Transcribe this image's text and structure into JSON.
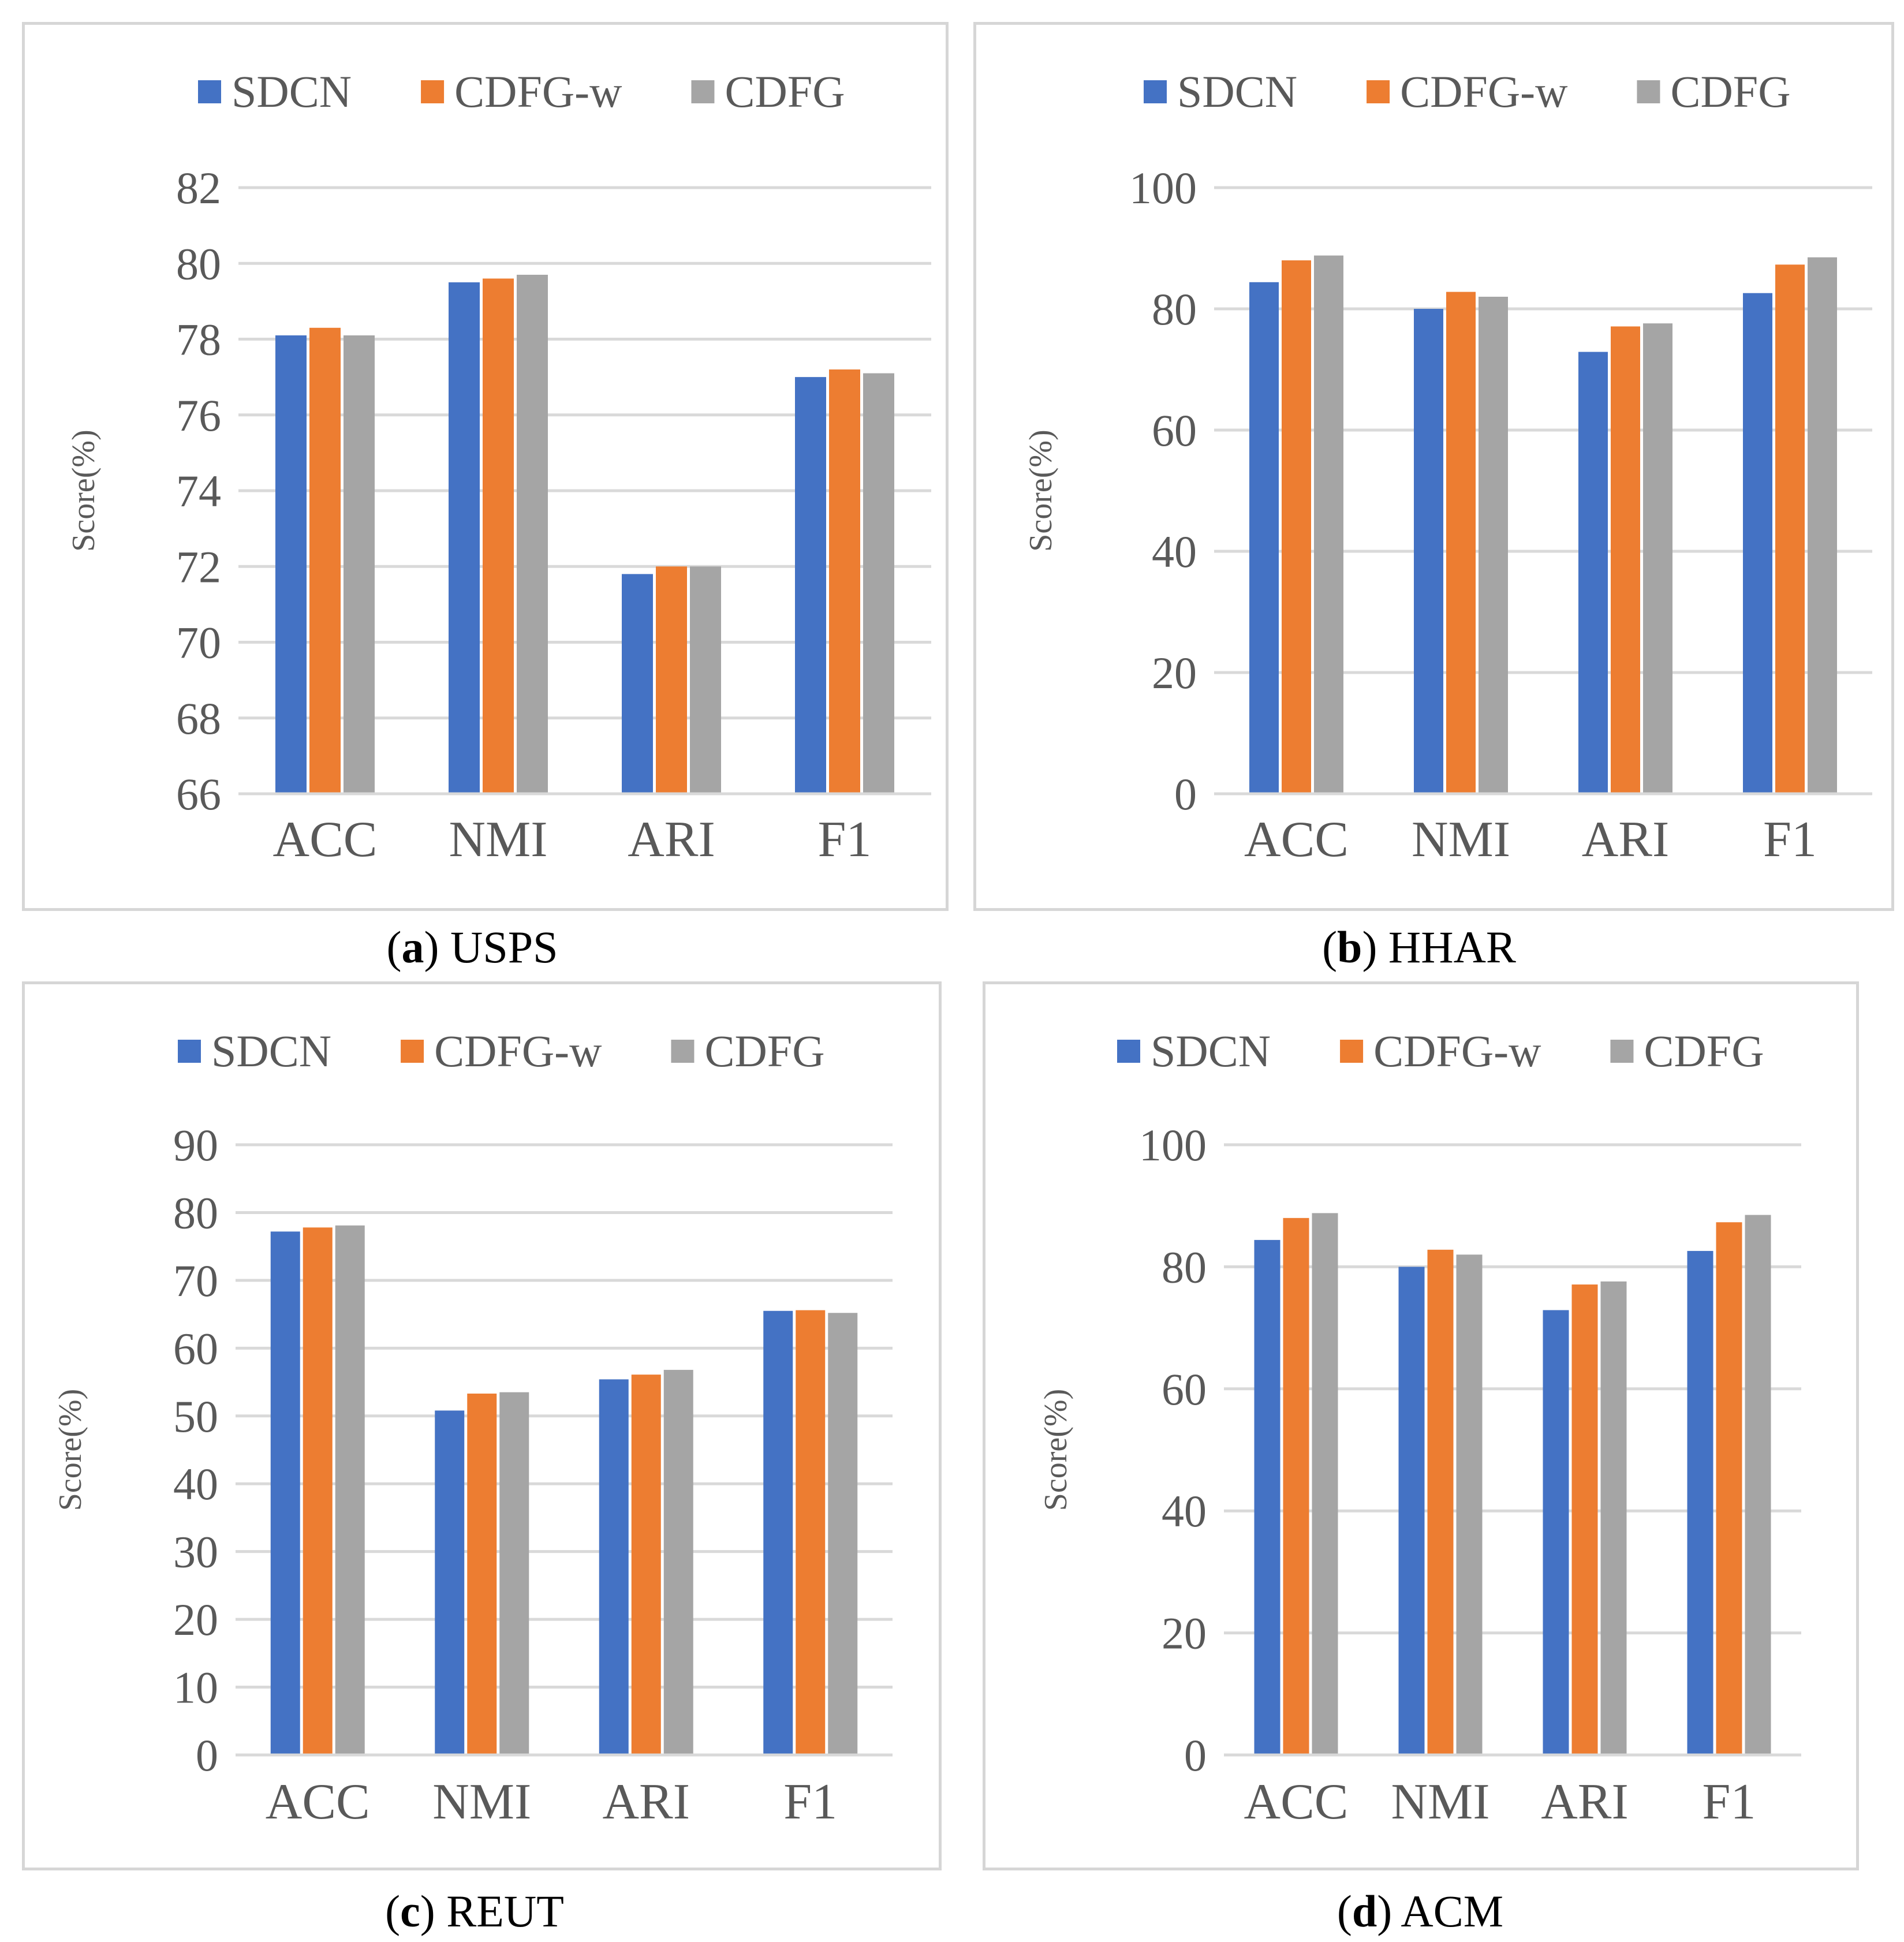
{
  "colors": {
    "series": [
      "#4472c4",
      "#ed7d31",
      "#a5a5a5"
    ],
    "grid": "#d9d9d9",
    "text": "#595959",
    "border": "#d6d6d6"
  },
  "chart_data": [
    {
      "type": "bar",
      "panel_id": "a",
      "caption_letter": "a",
      "caption_name": "USPS",
      "categories": [
        "ACC",
        "NMI",
        "ARI",
        "F1"
      ],
      "series": [
        {
          "name": "SDCN",
          "values": [
            78.1,
            79.5,
            71.8,
            77.0
          ]
        },
        {
          "name": "CDFG-w",
          "values": [
            78.3,
            79.6,
            72.0,
            77.2
          ]
        },
        {
          "name": "CDFG",
          "values": [
            78.1,
            79.7,
            72.0,
            77.1
          ]
        }
      ],
      "ylabel": "Score(%)",
      "ylim": [
        66,
        82
      ],
      "yticks": [
        66,
        68,
        70,
        72,
        74,
        76,
        78,
        80,
        82
      ],
      "grid": true,
      "legend": "top"
    },
    {
      "type": "bar",
      "panel_id": "b",
      "caption_letter": "b",
      "caption_name": "HHAR",
      "categories": [
        "ACC",
        "NMI",
        "ARI",
        "F1"
      ],
      "series": [
        {
          "name": "SDCN",
          "values": [
            84.4,
            80.0,
            72.9,
            82.6
          ]
        },
        {
          "name": "CDFG-w",
          "values": [
            88.0,
            82.8,
            77.1,
            87.3
          ]
        },
        {
          "name": "CDFG",
          "values": [
            88.8,
            82.0,
            77.6,
            88.5
          ]
        }
      ],
      "ylabel": "Score(%)",
      "ylim": [
        0,
        100
      ],
      "yticks": [
        0,
        20,
        40,
        60,
        80,
        100
      ],
      "grid": true,
      "legend": "top"
    },
    {
      "type": "bar",
      "panel_id": "c",
      "caption_letter": "c",
      "caption_name": "REUT",
      "categories": [
        "ACC",
        "NMI",
        "ARI",
        "F1"
      ],
      "series": [
        {
          "name": "SDCN",
          "values": [
            77.2,
            50.8,
            55.4,
            65.5
          ]
        },
        {
          "name": "CDFG-w",
          "values": [
            77.8,
            53.3,
            56.1,
            65.6
          ]
        },
        {
          "name": "CDFG",
          "values": [
            78.1,
            53.5,
            56.8,
            65.2
          ]
        }
      ],
      "ylabel": "Score(%)",
      "ylim": [
        0,
        90
      ],
      "yticks": [
        0,
        10,
        20,
        30,
        40,
        50,
        60,
        70,
        80,
        90
      ],
      "grid": true,
      "legend": "top"
    },
    {
      "type": "bar",
      "panel_id": "d",
      "caption_letter": "d",
      "caption_name": "ACM",
      "categories": [
        "ACC",
        "NMI",
        "ARI",
        "F1"
      ],
      "series": [
        {
          "name": "SDCN",
          "values": [
            84.4,
            80.0,
            72.9,
            82.6
          ]
        },
        {
          "name": "CDFG-w",
          "values": [
            88.0,
            82.8,
            77.1,
            87.3
          ]
        },
        {
          "name": "CDFG",
          "values": [
            88.8,
            82.0,
            77.6,
            88.5
          ]
        }
      ],
      "ylabel": "Score(%)",
      "ylim": [
        0,
        100
      ],
      "yticks": [
        0,
        20,
        40,
        60,
        80,
        100
      ],
      "grid": true,
      "legend": "top"
    }
  ]
}
